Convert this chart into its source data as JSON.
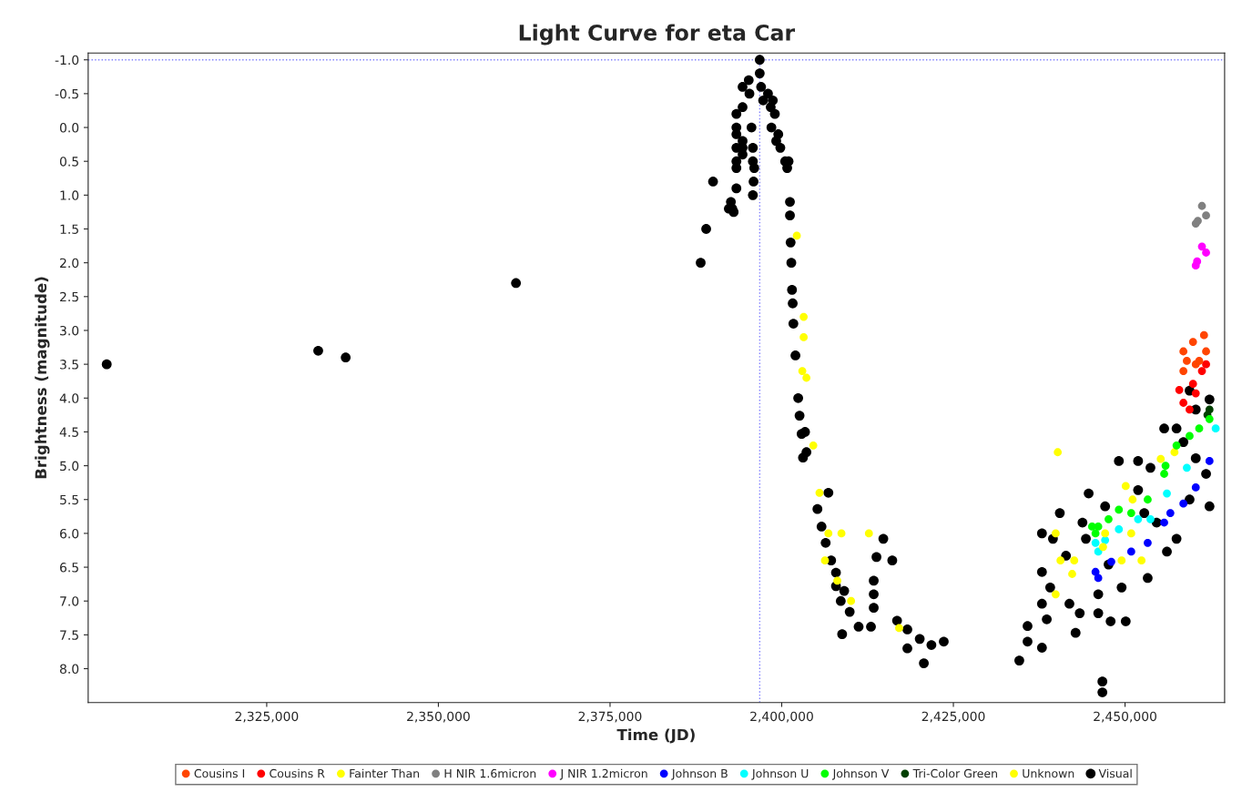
{
  "chart_data": {
    "type": "scatter",
    "title": "Light Curve for eta Car",
    "xlabel": "Time (JD)",
    "ylabel": "Brightness (magnitude)",
    "xlim": [
      2299000,
      2464500
    ],
    "xticks": [
      {
        "value": 2325000,
        "label": "2,325,000"
      },
      {
        "value": 2350000,
        "label": "2,350,000"
      },
      {
        "value": 2375000,
        "label": "2,375,000"
      },
      {
        "value": 2400000,
        "label": "2,400,000"
      },
      {
        "value": 2425000,
        "label": "2,425,000"
      },
      {
        "value": 2450000,
        "label": "2,450,000"
      }
    ],
    "ylim": [
      8.5,
      -1.1
    ],
    "yticks": [
      {
        "value": -1.0,
        "label": "-1.0"
      },
      {
        "value": -0.5,
        "label": "-0.5"
      },
      {
        "value": 0.0,
        "label": "0.0"
      },
      {
        "value": 0.5,
        "label": "0.5"
      },
      {
        "value": 1.0,
        "label": "1.0"
      },
      {
        "value": 1.5,
        "label": "1.5"
      },
      {
        "value": 2.0,
        "label": "2.0"
      },
      {
        "value": 2.5,
        "label": "2.5"
      },
      {
        "value": 3.0,
        "label": "3.0"
      },
      {
        "value": 3.5,
        "label": "3.5"
      },
      {
        "value": 4.0,
        "label": "4.0"
      },
      {
        "value": 4.5,
        "label": "4.5"
      },
      {
        "value": 5.0,
        "label": "5.0"
      },
      {
        "value": 5.5,
        "label": "5.5"
      },
      {
        "value": 6.0,
        "label": "6.0"
      },
      {
        "value": 6.5,
        "label": "6.5"
      },
      {
        "value": 7.0,
        "label": "7.0"
      },
      {
        "value": 7.5,
        "label": "7.5"
      },
      {
        "value": 8.0,
        "label": "8.0"
      }
    ],
    "grid": false,
    "legend": "bottom",
    "marker": "circle",
    "ref_lines": [
      {
        "axis": "y",
        "value": -1.0,
        "color": "#8080ff",
        "line_style": "dotted"
      },
      {
        "axis": "x",
        "value": 2396800,
        "color": "#8080ff",
        "line_style": "dotted"
      }
    ],
    "series": [
      {
        "name": "Cousins I",
        "color": "#ff4500",
        "x": [
          2458500,
          2459900,
          2461500,
          2458500,
          2460300,
          2461800,
          2459000,
          2460800
        ],
        "values": [
          3.31,
          3.17,
          3.07,
          3.6,
          3.5,
          3.31,
          3.45,
          3.45
        ]
      },
      {
        "name": "Cousins R",
        "color": "#ff0000",
        "x": [
          2457900,
          2458500,
          2459900,
          2461200,
          2461800,
          2460300,
          2459400
        ],
        "values": [
          3.88,
          4.07,
          3.79,
          3.6,
          3.5,
          3.93,
          4.17
        ]
      },
      {
        "name": "Fainter Than",
        "color": "#ffff00",
        "x": [
          2402200,
          2403200,
          2403200,
          2403000,
          2403600,
          2404600,
          2405500,
          2406800,
          2406300,
          2408100,
          2410100,
          2417100,
          2439900,
          2440600,
          2442600,
          2442300,
          2447100,
          2446800,
          2449500,
          2452400,
          2450900,
          2450100,
          2451100
        ],
        "values": [
          1.6,
          2.8,
          3.1,
          3.6,
          3.7,
          4.7,
          5.4,
          6.0,
          6.4,
          6.7,
          7.0,
          7.4,
          6.9,
          6.4,
          6.4,
          6.6,
          6.0,
          6.2,
          6.4,
          6.4,
          6.0,
          5.3,
          5.5
        ]
      },
      {
        "name": "H NIR 1.6micron",
        "color": "#808080",
        "x": [
          2461200,
          2461800,
          2460300,
          2460600
        ],
        "values": [
          1.16,
          1.3,
          1.42,
          1.38
        ]
      },
      {
        "name": "J NIR 1.2micron",
        "color": "#ff00ff",
        "x": [
          2461200,
          2461800,
          2460300,
          2460500
        ],
        "values": [
          1.76,
          1.85,
          2.04,
          1.98
        ]
      },
      {
        "name": "Johnson B",
        "color": "#0000ff",
        "x": [
          2445700,
          2448000,
          2450900,
          2453300,
          2455700,
          2458500,
          2460300,
          2462300,
          2456600,
          2446100
        ],
        "values": [
          6.57,
          6.42,
          6.27,
          6.14,
          5.84,
          5.56,
          5.32,
          4.93,
          5.7,
          6.66
        ]
      },
      {
        "name": "Johnson U",
        "color": "#00ffff",
        "x": [
          2445700,
          2447100,
          2449100,
          2451900,
          2453700,
          2456100,
          2459000,
          2463200,
          2446100
        ],
        "values": [
          6.14,
          6.1,
          5.94,
          5.79,
          5.79,
          5.41,
          5.03,
          4.45,
          6.27
        ]
      },
      {
        "name": "Johnson V",
        "color": "#00ff00",
        "x": [
          2445200,
          2446100,
          2447600,
          2449100,
          2450900,
          2453300,
          2455700,
          2455900,
          2457500,
          2459400,
          2460800,
          2462300,
          2445700
        ],
        "values": [
          5.9,
          5.9,
          5.79,
          5.65,
          5.7,
          5.5,
          5.12,
          5.0,
          4.7,
          4.56,
          4.45,
          4.31,
          6.0
        ]
      },
      {
        "name": "Tri-Color Green",
        "color": "#004000",
        "x": [
          2462300,
          2462000
        ],
        "values": [
          4.17,
          4.25
        ]
      },
      {
        "name": "Unknown",
        "color": "#ffff00",
        "x": [
          2408700,
          2412700,
          2440200,
          2439900,
          2457200,
          2455200
        ],
        "values": [
          6.0,
          6.0,
          4.8,
          6.0,
          4.8,
          4.9
        ]
      },
      {
        "name": "Visual",
        "color": "#000000",
        "x": [
          2301700,
          2332500,
          2336500,
          2361300,
          2388200,
          2389000,
          2390000,
          2392300,
          2392600,
          2393000,
          2392800,
          2393400,
          2393400,
          2393400,
          2393400,
          2393400,
          2393400,
          2393400,
          2394300,
          2394300,
          2394300,
          2394300,
          2394300,
          2395800,
          2395200,
          2395300,
          2395600,
          2395800,
          2395800,
          2396000,
          2395900,
          2396800,
          2396800,
          2397000,
          2397300,
          2398000,
          2398400,
          2398700,
          2399000,
          2398500,
          2399500,
          2399200,
          2399800,
          2400500,
          2400800,
          2401000,
          2401200,
          2401200,
          2401300,
          2401400,
          2401500,
          2401600,
          2401700,
          2402000,
          2402400,
          2402600,
          2402900,
          2403100,
          2403600,
          2403400,
          2406800,
          2405200,
          2405800,
          2406400,
          2407200,
          2407900,
          2407900,
          2409100,
          2408600,
          2409900,
          2411200,
          2413000,
          2408800,
          2414800,
          2413800,
          2416100,
          2413400,
          2413400,
          2413400,
          2416800,
          2418300,
          2420100,
          2421800,
          2423600,
          2418300,
          2420700,
          2434600,
          2435800,
          2435800,
          2437900,
          2437900,
          2437900,
          2437900,
          2439100,
          2440500,
          2441400,
          2442800,
          2441900,
          2443800,
          2444700,
          2446100,
          2446100,
          2447900,
          2450100,
          2449100,
          2449500,
          2451900,
          2453700,
          2453300,
          2455700,
          2457500,
          2456100,
          2459400,
          2460300,
          2462300,
          2462300,
          2461800,
          2459400,
          2460300,
          2458500,
          2457500,
          2451900,
          2447100,
          2444300,
          2439500,
          2443400,
          2438600,
          2452800,
          2454600,
          2447600,
          2446700,
          2446700
        ],
        "values": [
          3.5,
          3.3,
          3.4,
          2.3,
          2.0,
          1.5,
          0.8,
          1.2,
          1.1,
          1.25,
          1.2,
          -0.2,
          0.0,
          0.1,
          0.3,
          0.5,
          0.6,
          0.9,
          -0.6,
          -0.3,
          0.2,
          0.3,
          0.4,
          1.0,
          -0.7,
          -0.5,
          0.0,
          0.3,
          0.5,
          0.6,
          0.8,
          -1.0,
          -0.8,
          -0.6,
          -0.4,
          -0.5,
          -0.3,
          -0.4,
          -0.2,
          0.0,
          0.1,
          0.2,
          0.3,
          0.5,
          0.6,
          0.5,
          1.1,
          1.3,
          1.7,
          2.0,
          2.4,
          2.6,
          2.9,
          3.37,
          4.0,
          4.26,
          4.53,
          4.88,
          4.8,
          4.5,
          5.4,
          5.64,
          5.9,
          6.14,
          6.4,
          6.58,
          6.78,
          6.85,
          7.0,
          7.16,
          7.38,
          7.38,
          7.49,
          6.08,
          6.35,
          6.4,
          6.7,
          6.9,
          7.1,
          7.29,
          7.42,
          7.56,
          7.65,
          7.6,
          7.7,
          7.92,
          7.88,
          7.37,
          7.6,
          7.69,
          6.0,
          6.57,
          7.04,
          6.8,
          5.7,
          6.33,
          7.47,
          7.04,
          5.84,
          5.41,
          6.9,
          7.18,
          7.3,
          7.3,
          4.93,
          6.8,
          4.93,
          5.03,
          6.66,
          4.45,
          6.08,
          6.27,
          3.89,
          4.17,
          4.02,
          5.6,
          5.12,
          5.5,
          4.89,
          4.65,
          4.45,
          5.36,
          5.6,
          6.08,
          6.08,
          7.18,
          7.27,
          5.7,
          5.84,
          6.46,
          8.19,
          8.35
        ]
      }
    ]
  }
}
